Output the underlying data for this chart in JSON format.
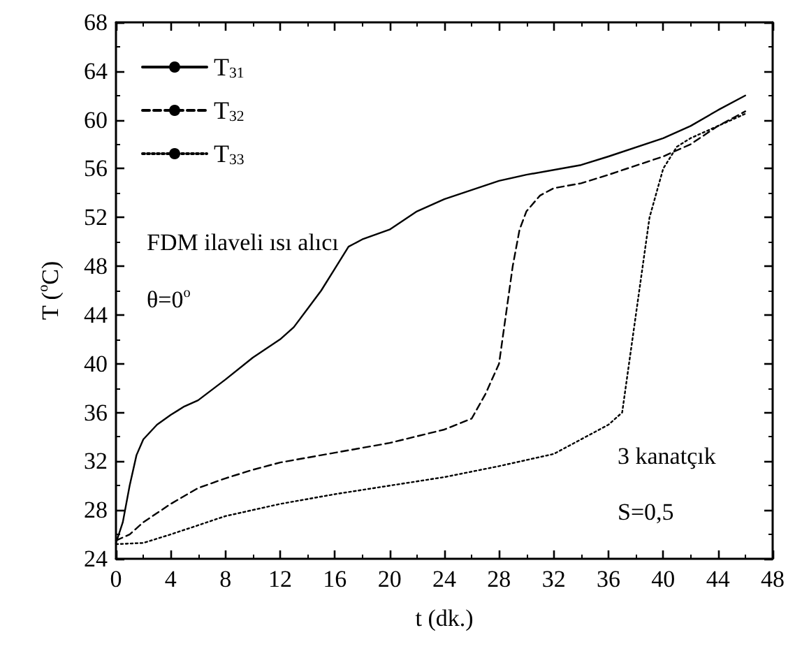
{
  "chart_data": {
    "type": "line",
    "xlabel": "t (dk.)",
    "ylabel": "T ($^{o}$C)",
    "xlim": [
      0,
      48
    ],
    "xticks": [
      0,
      4,
      8,
      12,
      16,
      20,
      24,
      28,
      32,
      36,
      40,
      44,
      48
    ],
    "ylim": [
      24,
      68
    ],
    "yticks": [
      24,
      28,
      32,
      36,
      40,
      44,
      48,
      52,
      56,
      60,
      64,
      68
    ],
    "grid": false,
    "legend": "top left",
    "marker": "none",
    "annotations": [
      "FDM ilaveli ısı alıcı",
      "θ=0$^{o}$",
      "3 kanatçık",
      "S=0,5"
    ],
    "series": [
      {
        "name": "T$_{31}$",
        "color": "#000000",
        "line_style": "solid",
        "x": [
          0,
          0.5,
          1,
          1.5,
          2,
          3,
          4,
          5,
          6,
          8,
          10,
          12,
          13,
          14,
          15,
          16,
          17,
          18,
          20,
          22,
          24,
          28,
          30,
          34,
          36,
          40,
          42,
          44,
          46
        ],
        "values": [
          25.3,
          27,
          30,
          32.5,
          33.8,
          35,
          35.8,
          36.5,
          37,
          38.7,
          40.5,
          42,
          43,
          44.5,
          46,
          47.8,
          49.6,
          50.2,
          51,
          52.5,
          53.5,
          55,
          55.5,
          56.3,
          57,
          58.5,
          59.5,
          60.8,
          62
        ]
      },
      {
        "name": "T$_{32}$",
        "color": "#000000",
        "line_style": "dashed",
        "x": [
          0,
          1,
          2,
          4,
          6,
          8,
          10,
          12,
          16,
          20,
          24,
          26,
          27,
          28,
          28.5,
          29,
          29.5,
          30,
          31,
          32,
          34,
          36,
          40,
          42,
          44,
          46
        ],
        "values": [
          25.5,
          26,
          27,
          28.5,
          29.8,
          30.6,
          31.3,
          31.9,
          32.7,
          33.5,
          34.6,
          35.5,
          37.5,
          40,
          44,
          48,
          51,
          52.5,
          53.8,
          54.4,
          54.8,
          55.5,
          57,
          58,
          59.5,
          60.7
        ]
      },
      {
        "name": "T$_{33}$",
        "color": "#000000",
        "line_style": "dotted",
        "x": [
          0,
          2,
          4,
          8,
          12,
          16,
          20,
          24,
          28,
          32,
          34,
          36,
          37,
          37.5,
          38,
          38.5,
          39,
          39.5,
          40,
          41,
          42,
          44,
          46
        ],
        "values": [
          25.2,
          25.3,
          26,
          27.5,
          28.5,
          29.3,
          30,
          30.7,
          31.6,
          32.6,
          33.8,
          35,
          36,
          40,
          44,
          48,
          52,
          54,
          56,
          57.8,
          58.5,
          59.5,
          60.5
        ]
      }
    ]
  }
}
